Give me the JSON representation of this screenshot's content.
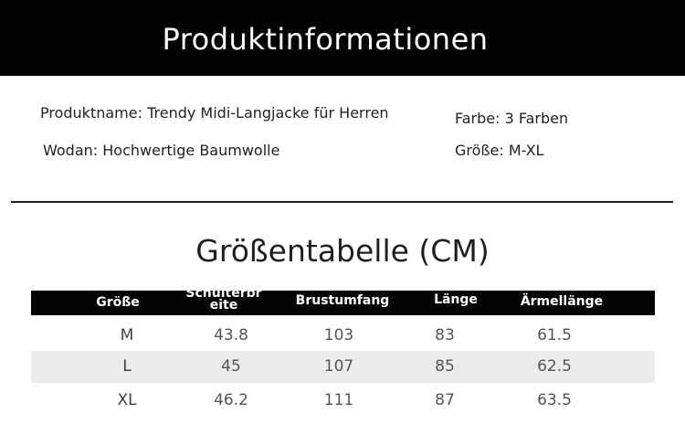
{
  "banner": {
    "title": "Produktinformationen"
  },
  "info": {
    "name": "Produktname: Trendy Midi-Langjacke für Herren",
    "material": "Wodan: Hochwertige Baumwolle",
    "color": "Farbe: 3 Farben",
    "size": "Größe: M-XL"
  },
  "size_table": {
    "title": "Größentabelle (CM)",
    "headers": [
      "Größe",
      "Schulterbreite",
      "Brustumfang",
      "Länge",
      "Ärmellänge"
    ],
    "header_shoulder_line1": "Schulterbr",
    "header_shoulder_line2": "eite",
    "rows": [
      [
        "M",
        "43.8",
        "103",
        "83",
        "61.5"
      ],
      [
        "L",
        "45",
        "107",
        "85",
        "62.5"
      ],
      [
        "XL",
        "46.2",
        "111",
        "87",
        "63.5"
      ]
    ]
  },
  "colors": {
    "banner_bg": "#030303",
    "header_bg": "#050505",
    "stripe": "#ececec"
  }
}
